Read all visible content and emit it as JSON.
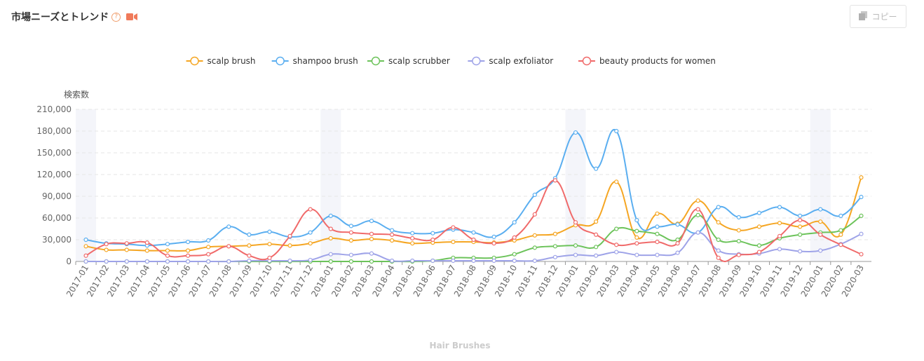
{
  "header": {
    "title": "市場ニーズとトレンド",
    "help_glyph": "?",
    "copy_label": "コピー"
  },
  "colors": {
    "accent": "#f07a5a",
    "grid": "#e6e6e6",
    "highlight": "#f4f5fa"
  },
  "chart_data": {
    "type": "line",
    "ylabel": "検索数",
    "xlabel": "Hair Brushes",
    "ylim": [
      0,
      210000
    ],
    "yticks": [
      0,
      30000,
      60000,
      90000,
      120000,
      150000,
      180000,
      210000
    ],
    "yticklabels": [
      "0",
      "30,000",
      "60,000",
      "90,000",
      "120,000",
      "150,000",
      "180,000",
      "210,000"
    ],
    "legend_position": "top-center",
    "highlight_months": [
      "2017-01",
      "2018-01",
      "2019-01",
      "2020-01"
    ],
    "categories": [
      "2017-01",
      "2017-02",
      "2017-03",
      "2017-04",
      "2017-05",
      "2017-06",
      "2017-07",
      "2017-08",
      "2017-09",
      "2017-10",
      "2017-11",
      "2017-12",
      "2018-01",
      "2018-02",
      "2018-03",
      "2018-04",
      "2018-05",
      "2018-06",
      "2018-07",
      "2018-08",
      "2018-09",
      "2018-10",
      "2018-11",
      "2018-12",
      "2019-01",
      "2019-02",
      "2019-03",
      "2019-04",
      "2019-05",
      "2019-06",
      "2019-07",
      "2019-08",
      "2019-09",
      "2019-10",
      "2019-11",
      "2019-12",
      "2020-01",
      "2020-02",
      "2020-03"
    ],
    "series": [
      {
        "name": "scalp brush",
        "color": "#f5a623",
        "values": [
          21000,
          16000,
          16000,
          15000,
          15000,
          15000,
          20000,
          21000,
          22000,
          24000,
          22000,
          25000,
          32000,
          29000,
          31000,
          29000,
          25000,
          26000,
          27000,
          27000,
          26000,
          29000,
          36000,
          38000,
          50000,
          55000,
          110000,
          33000,
          66000,
          52000,
          84000,
          54000,
          43000,
          48000,
          53000,
          48000,
          55000,
          37000,
          116000
        ]
      },
      {
        "name": "shampoo brush",
        "color": "#5aaef0",
        "values": [
          30000,
          25000,
          24000,
          22000,
          24000,
          27000,
          29000,
          48000,
          37000,
          41000,
          34000,
          40000,
          63000,
          49000,
          56000,
          43000,
          39000,
          39000,
          44000,
          40000,
          34000,
          54000,
          92000,
          115000,
          178000,
          128000,
          180000,
          57000,
          48000,
          51000,
          40000,
          75000,
          61000,
          67000,
          75000,
          63000,
          72000,
          63000,
          89000
        ]
      },
      {
        "name": "scalp scrubber",
        "color": "#6cc35a",
        "values": [
          0,
          0,
          0,
          0,
          0,
          0,
          0,
          0,
          0,
          0,
          0,
          0,
          0,
          0,
          0,
          0,
          0,
          1000,
          5000,
          5000,
          5000,
          10000,
          19000,
          21000,
          22000,
          20000,
          45000,
          42000,
          38000,
          30000,
          64000,
          30000,
          28000,
          22000,
          32000,
          37000,
          40000,
          43000,
          63000
        ]
      },
      {
        "name": "scalp exfoliator",
        "color": "#9ea3e8",
        "values": [
          0,
          0,
          0,
          0,
          0,
          0,
          0,
          0,
          1000,
          1000,
          1000,
          2000,
          10000,
          9000,
          11000,
          1000,
          1000,
          1000,
          1000,
          1000,
          1000,
          1000,
          1000,
          6000,
          9000,
          8000,
          13000,
          9000,
          9000,
          12000,
          40000,
          15000,
          10000,
          11000,
          17000,
          14000,
          15000,
          24000,
          38000
        ]
      },
      {
        "name": "beauty products for women",
        "color": "#f06a6a",
        "values": [
          8000,
          24000,
          25000,
          26000,
          8000,
          8000,
          10000,
          21000,
          8000,
          5000,
          35000,
          72000,
          45000,
          40000,
          38000,
          37000,
          32000,
          30000,
          47000,
          30000,
          25000,
          33000,
          65000,
          112000,
          54000,
          37000,
          23000,
          25000,
          27000,
          25000,
          72000,
          5000,
          9000,
          13000,
          35000,
          57000,
          37000,
          23000,
          10000
        ]
      }
    ]
  }
}
